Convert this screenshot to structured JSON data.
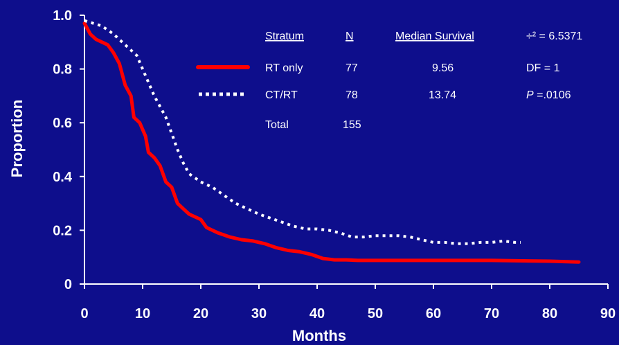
{
  "chart_data": {
    "type": "line",
    "xlabel": "Months",
    "ylabel": "Proportion",
    "xlim": [
      0,
      90
    ],
    "ylim": [
      0,
      1.0
    ],
    "x_ticks": [
      0,
      10,
      20,
      30,
      40,
      50,
      60,
      70,
      80,
      90
    ],
    "y_ticks": [
      "0",
      "0.2",
      "0.4",
      "0.6",
      "0.8",
      "1.0"
    ],
    "grid": false,
    "legend": {
      "placement": "top-right",
      "headers": {
        "stratum": "Stratum",
        "n": "N",
        "median": "Median Survival",
        "stat": "÷² = 6.5371"
      },
      "rows": [
        {
          "stratum": "RT only",
          "n": "77",
          "median": "9.56",
          "stat": "DF = 1",
          "series": "RT only"
        },
        {
          "stratum": "CT/RT",
          "n": "78",
          "median": "13.74",
          "stat_prefix": "P",
          "stat": " =.0106",
          "series": "CT/RT"
        },
        {
          "stratum": "Total",
          "n": "155",
          "median": "",
          "stat": ""
        }
      ]
    },
    "series": [
      {
        "name": "RT only",
        "color": "#FF0000",
        "style": "solid",
        "points": [
          [
            0,
            0.97
          ],
          [
            1,
            0.93
          ],
          [
            2,
            0.91
          ],
          [
            4,
            0.89
          ],
          [
            5,
            0.86
          ],
          [
            6,
            0.82
          ],
          [
            7,
            0.74
          ],
          [
            8,
            0.7
          ],
          [
            8.5,
            0.62
          ],
          [
            9.5,
            0.6
          ],
          [
            10.5,
            0.55
          ],
          [
            11,
            0.49
          ],
          [
            12,
            0.47
          ],
          [
            13,
            0.44
          ],
          [
            14,
            0.38
          ],
          [
            15,
            0.36
          ],
          [
            16,
            0.3
          ],
          [
            17,
            0.28
          ],
          [
            18,
            0.26
          ],
          [
            20,
            0.24
          ],
          [
            21,
            0.21
          ],
          [
            23,
            0.19
          ],
          [
            25,
            0.175
          ],
          [
            27,
            0.165
          ],
          [
            29,
            0.16
          ],
          [
            31,
            0.15
          ],
          [
            33,
            0.135
          ],
          [
            35,
            0.125
          ],
          [
            37,
            0.12
          ],
          [
            39,
            0.11
          ],
          [
            41,
            0.095
          ],
          [
            43,
            0.09
          ],
          [
            45,
            0.09
          ],
          [
            47,
            0.088
          ],
          [
            50,
            0.088
          ],
          [
            60,
            0.088
          ],
          [
            70,
            0.088
          ],
          [
            80,
            0.085
          ],
          [
            85,
            0.082
          ]
        ]
      },
      {
        "name": "CT/RT",
        "color": "#FFFFFF",
        "style": "dotted",
        "points": [
          [
            0,
            0.98
          ],
          [
            3,
            0.96
          ],
          [
            5,
            0.93
          ],
          [
            7,
            0.89
          ],
          [
            9,
            0.85
          ],
          [
            10,
            0.8
          ],
          [
            11,
            0.75
          ],
          [
            12,
            0.7
          ],
          [
            13,
            0.66
          ],
          [
            14,
            0.62
          ],
          [
            15,
            0.56
          ],
          [
            16,
            0.5
          ],
          [
            17,
            0.45
          ],
          [
            18,
            0.41
          ],
          [
            20,
            0.38
          ],
          [
            22,
            0.36
          ],
          [
            24,
            0.33
          ],
          [
            26,
            0.3
          ],
          [
            28,
            0.28
          ],
          [
            30,
            0.26
          ],
          [
            32,
            0.245
          ],
          [
            34,
            0.23
          ],
          [
            36,
            0.215
          ],
          [
            38,
            0.205
          ],
          [
            40,
            0.205
          ],
          [
            42,
            0.2
          ],
          [
            44,
            0.19
          ],
          [
            46,
            0.175
          ],
          [
            48,
            0.175
          ],
          [
            50,
            0.18
          ],
          [
            52,
            0.18
          ],
          [
            54,
            0.18
          ],
          [
            56,
            0.175
          ],
          [
            58,
            0.165
          ],
          [
            60,
            0.155
          ],
          [
            62,
            0.155
          ],
          [
            64,
            0.15
          ],
          [
            66,
            0.15
          ],
          [
            68,
            0.155
          ],
          [
            70,
            0.155
          ],
          [
            72,
            0.16
          ],
          [
            74,
            0.155
          ],
          [
            75,
            0.155
          ]
        ]
      }
    ]
  }
}
